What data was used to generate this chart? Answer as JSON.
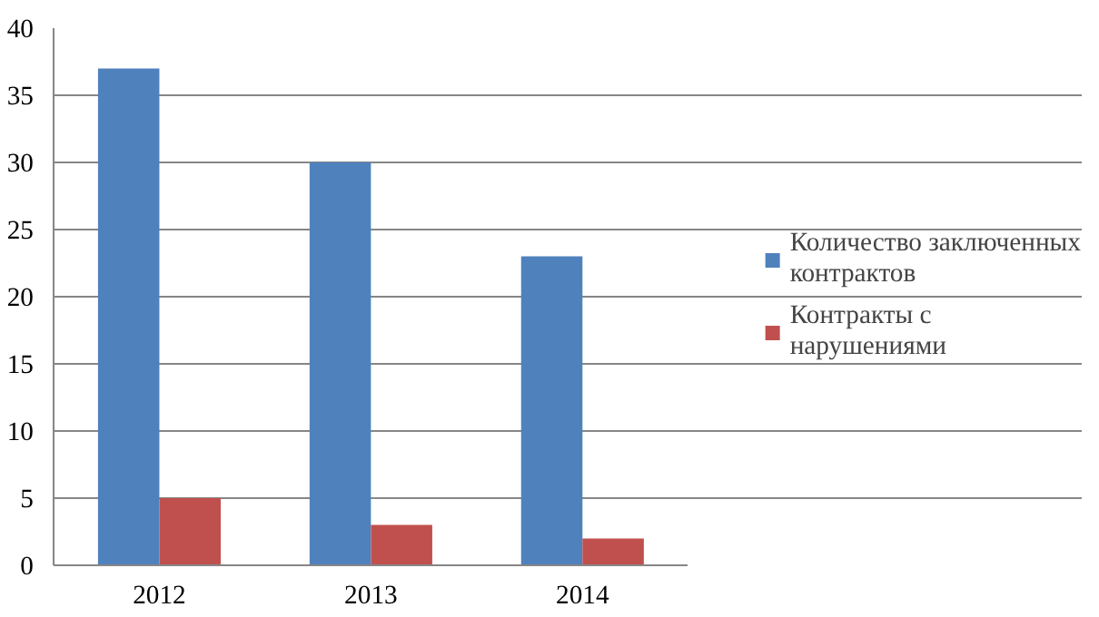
{
  "chart_data": {
    "type": "bar",
    "categories": [
      "2012",
      "2013",
      "2014"
    ],
    "series": [
      {
        "name": "Количество заключенных контрактов",
        "color": "#4f81bd",
        "values": [
          37,
          30,
          23
        ]
      },
      {
        "name": "Контракты с нарушениями",
        "color": "#c0504d",
        "values": [
          5,
          3,
          2
        ]
      }
    ],
    "ylim": [
      0,
      40
    ],
    "yticks": [
      0,
      5,
      10,
      15,
      20,
      25,
      30,
      35,
      40
    ],
    "grid": "y",
    "legend": "right"
  }
}
